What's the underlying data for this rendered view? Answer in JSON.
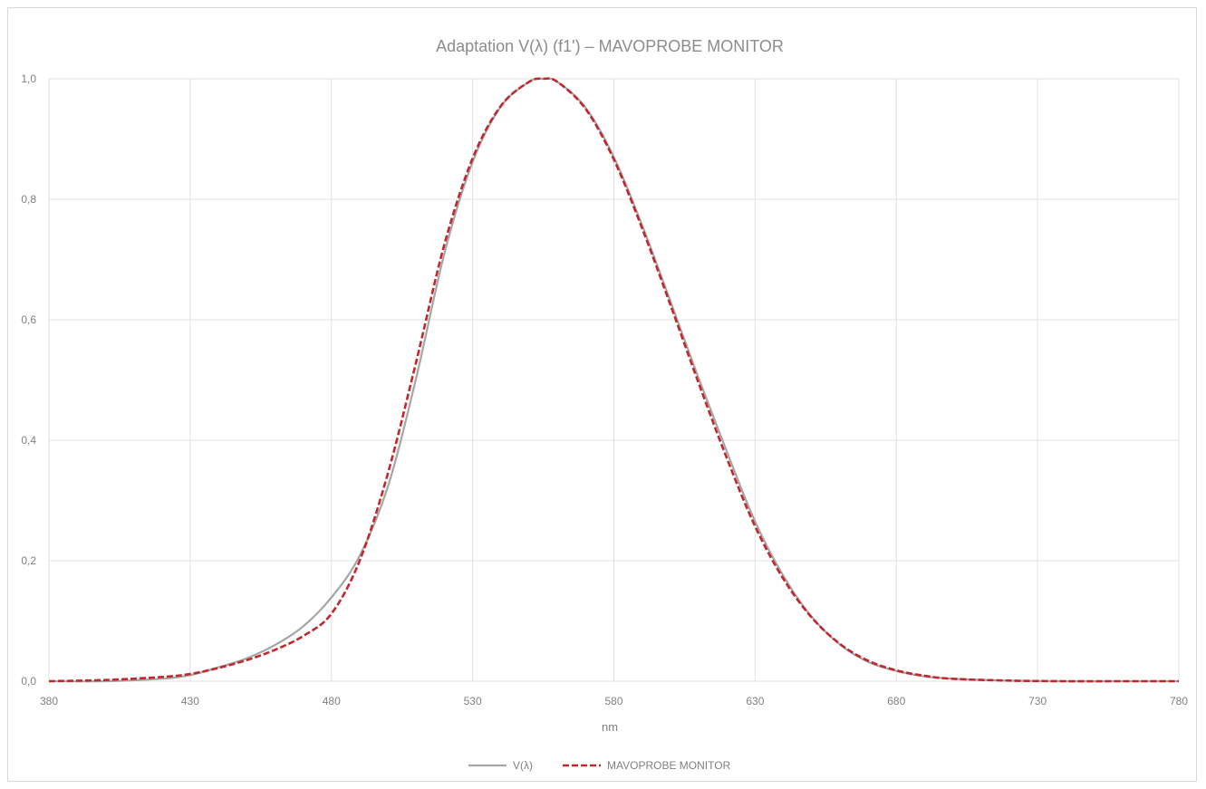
{
  "chart_data": {
    "type": "line",
    "title": "Adaptation V(λ) (f1') – MAVOPROBE MONITOR",
    "xlabel": "nm",
    "ylabel": "",
    "xlim": [
      380,
      780
    ],
    "ylim": [
      0,
      1
    ],
    "x_ticks": [
      "380",
      "430",
      "480",
      "530",
      "580",
      "630",
      "680",
      "730",
      "780"
    ],
    "x_tick_values": [
      380,
      430,
      480,
      530,
      580,
      630,
      680,
      730,
      780
    ],
    "y_ticks": [
      "0,0",
      "0,2",
      "0,4",
      "0,6",
      "0,8",
      "1,0"
    ],
    "y_tick_values": [
      0,
      0.2,
      0.4,
      0.6,
      0.8,
      1.0
    ],
    "grid": true,
    "legend_position": "bottom",
    "x": [
      380,
      400,
      420,
      430,
      440,
      450,
      460,
      470,
      480,
      490,
      500,
      510,
      520,
      530,
      540,
      550,
      555,
      560,
      570,
      580,
      590,
      600,
      610,
      620,
      630,
      640,
      650,
      660,
      670,
      680,
      690,
      700,
      720,
      740,
      760,
      780
    ],
    "series": [
      {
        "name": "V(λ)",
        "color": "#a6a6a6",
        "style": "solid",
        "values": [
          0.0,
          0.0,
          0.004,
          0.01,
          0.023,
          0.038,
          0.06,
          0.091,
          0.139,
          0.208,
          0.323,
          0.503,
          0.71,
          0.862,
          0.954,
          0.995,
          1.0,
          0.995,
          0.952,
          0.87,
          0.757,
          0.631,
          0.503,
          0.381,
          0.265,
          0.175,
          0.107,
          0.061,
          0.032,
          0.017,
          0.008,
          0.004,
          0.001,
          0.0,
          0.0,
          0.0
        ]
      },
      {
        "name": "MAVOPROBE MONITOR",
        "color": "#c0282d",
        "style": "dashed",
        "values": [
          0.0,
          0.002,
          0.007,
          0.012,
          0.022,
          0.035,
          0.052,
          0.075,
          0.112,
          0.2,
          0.345,
          0.53,
          0.725,
          0.868,
          0.955,
          0.995,
          1.0,
          0.995,
          0.95,
          0.866,
          0.752,
          0.625,
          0.495,
          0.37,
          0.257,
          0.17,
          0.106,
          0.062,
          0.034,
          0.018,
          0.009,
          0.004,
          0.001,
          0.0,
          0.0,
          0.0
        ]
      }
    ]
  }
}
